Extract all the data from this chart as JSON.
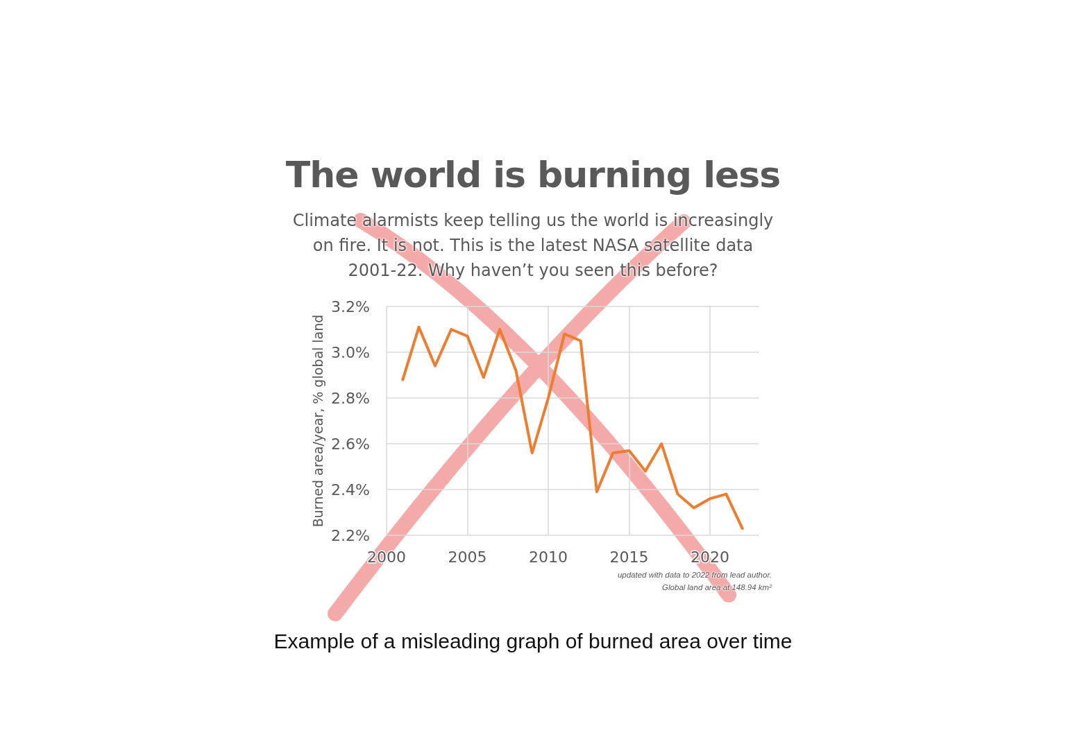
{
  "chart_data": {
    "type": "line",
    "title": "The world is burning less",
    "subtitle": "Climate alarmists keep telling us the world is increasingly on fire. It is not. This is the latest NASA satellite data 2001-22. Why haven’t you seen this before?",
    "ylabel": "Burned area/year, % global land",
    "x": [
      2001,
      2002,
      2003,
      2004,
      2005,
      2006,
      2007,
      2008,
      2009,
      2010,
      2011,
      2012,
      2013,
      2014,
      2015,
      2016,
      2017,
      2018,
      2019,
      2020,
      2021,
      2022
    ],
    "series": [
      {
        "color": "#ed7d31",
        "values": [
          2.88,
          3.11,
          2.94,
          3.1,
          3.07,
          2.89,
          3.1,
          2.92,
          2.56,
          2.8,
          3.08,
          3.05,
          2.39,
          2.56,
          2.57,
          2.48,
          2.6,
          2.38,
          2.32,
          2.36,
          2.38,
          2.23
        ]
      }
    ],
    "xlim": [
      2000,
      2023
    ],
    "xticks": [
      2000,
      2005,
      2010,
      2015,
      2020
    ],
    "ylim": [
      2.2,
      3.2
    ],
    "yticks": [
      {
        "value": 2.2,
        "label": "2.2%"
      },
      {
        "value": 2.4,
        "label": "2.4%"
      },
      {
        "value": 2.6,
        "label": "2.6%"
      },
      {
        "value": 2.8,
        "label": "2.8%"
      },
      {
        "value": 3.0,
        "label": "3.0%"
      },
      {
        "value": 3.2,
        "label": "3.2%"
      }
    ],
    "grid": true,
    "marker": "none",
    "line_style": "solid",
    "annotations": [
      "updated with data to 2022 from lead author.",
      "Global land area at 148.94 km²",
      "Example of a misleading graph of burned area over time"
    ]
  }
}
